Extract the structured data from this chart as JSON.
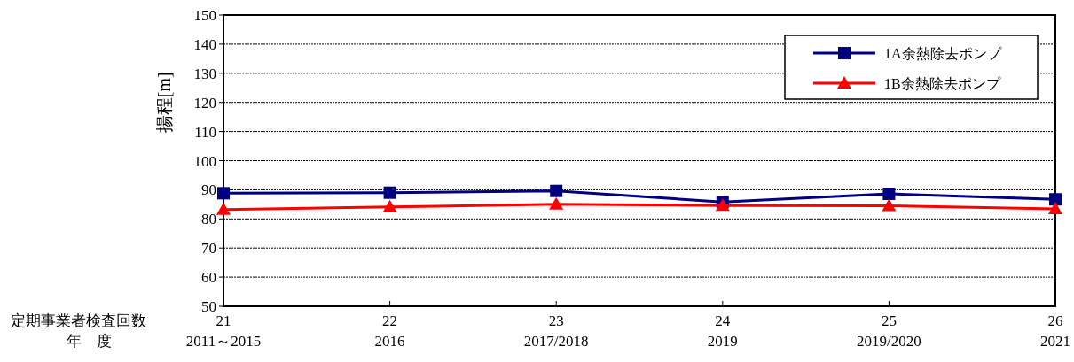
{
  "chart_data": {
    "type": "line",
    "ylabel": "揚程[m]",
    "categories": [
      "21\n2011～2015",
      "22\n2016",
      "23\n2017/2018",
      "24\n2019",
      "25\n2019/2020",
      "26\n2021"
    ],
    "annotations": [
      "定期事業者検査回数",
      "年　度"
    ],
    "series": [
      {
        "name": "1A余熱除去ポンプ",
        "color": "#000080",
        "marker": "square",
        "values": [
          88.8,
          89.0,
          89.6,
          85.8,
          88.6,
          86.7
        ]
      },
      {
        "name": "1B余熱除去ポンプ",
        "color": "#ff0000",
        "marker": "triangle",
        "values": [
          83.2,
          84.1,
          85.0,
          84.6,
          84.5,
          83.4
        ]
      }
    ],
    "ylim": [
      50,
      150
    ],
    "yticks": [
      50,
      60,
      70,
      80,
      90,
      100,
      110,
      120,
      130,
      140,
      150
    ],
    "grid": "y",
    "legend": "top right",
    "line_style": "solid"
  }
}
